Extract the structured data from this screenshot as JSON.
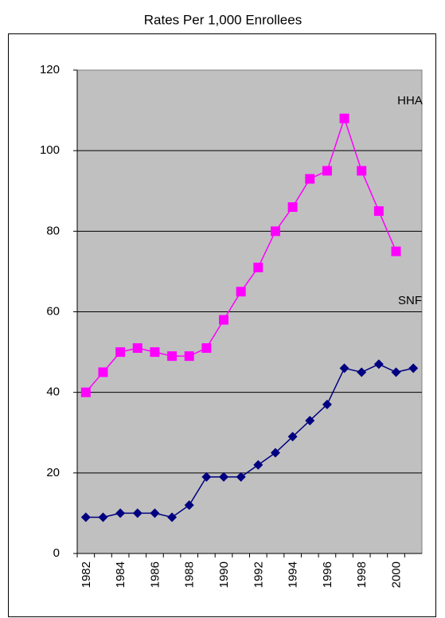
{
  "chart_data": {
    "type": "line",
    "title": "Rates Per 1,000 Enrollees",
    "categories": [
      "1982",
      null,
      "1984",
      null,
      "1986",
      null,
      "1988",
      null,
      "1990",
      null,
      "1992",
      null,
      "1994",
      null,
      "1996",
      null,
      "1998",
      null,
      "2000",
      null
    ],
    "series": [
      {
        "name": "HHA",
        "color": "#ff00ff",
        "marker": "square",
        "values": [
          40,
          45,
          50,
          51,
          50,
          49,
          49,
          51,
          58,
          65,
          71,
          80,
          86,
          93,
          95,
          108,
          95,
          85,
          75,
          null
        ]
      },
      {
        "name": "SNF",
        "color": "#000080",
        "marker": "diamond",
        "values": [
          9,
          9,
          10,
          10,
          10,
          9,
          12,
          19,
          19,
          19,
          22,
          25,
          29,
          33,
          37,
          46,
          45,
          47,
          45,
          46
        ]
      }
    ],
    "ylim": [
      0,
      120
    ],
    "yticks": [
      0,
      20,
      40,
      60,
      80,
      100,
      120
    ],
    "grid": true
  }
}
